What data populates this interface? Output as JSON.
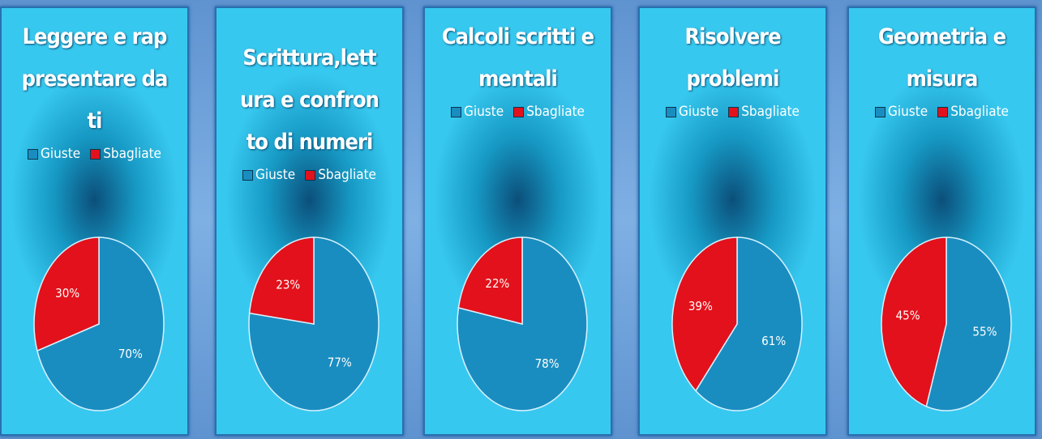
{
  "chart_data": [
    {
      "type": "pie",
      "title": "Scrittura,lettura e confronto di numeri",
      "categories": [
        "Giuste",
        "Sbagliate"
      ],
      "values": [
        77,
        23
      ],
      "value_labels": [
        "77%",
        "23%"
      ],
      "colors": [
        "#1a8dc0",
        "#e3111b"
      ]
    },
    {
      "type": "pie",
      "title": "Calcoli scritti e mentali",
      "categories": [
        "Giuste",
        "Sbagliate"
      ],
      "values": [
        78,
        22
      ],
      "value_labels": [
        "78%",
        "22%"
      ],
      "colors": [
        "#1a8dc0",
        "#e3111b"
      ]
    },
    {
      "type": "pie",
      "title": "Risolvere problemi",
      "categories": [
        "Giuste",
        "Sbagliate"
      ],
      "values": [
        61,
        39
      ],
      "value_labels": [
        "61%",
        "39%"
      ],
      "colors": [
        "#1a8dc0",
        "#e3111b"
      ]
    },
    {
      "type": "pie",
      "title": "Geometria e misura",
      "categories": [
        "Giuste",
        "Sbagliate"
      ],
      "values": [
        55,
        45
      ],
      "value_labels": [
        "55%",
        "45%"
      ],
      "colors": [
        "#1a8dc0",
        "#e3111b"
      ]
    },
    {
      "type": "pie",
      "title": "Leggere e rappresentare dati",
      "categories": [
        "Giuste",
        "Sbagliate"
      ],
      "values": [
        70,
        30
      ],
      "value_labels": [
        "70%",
        "30%"
      ],
      "colors": [
        "#1a8dc0",
        "#e3111b"
      ]
    }
  ]
}
